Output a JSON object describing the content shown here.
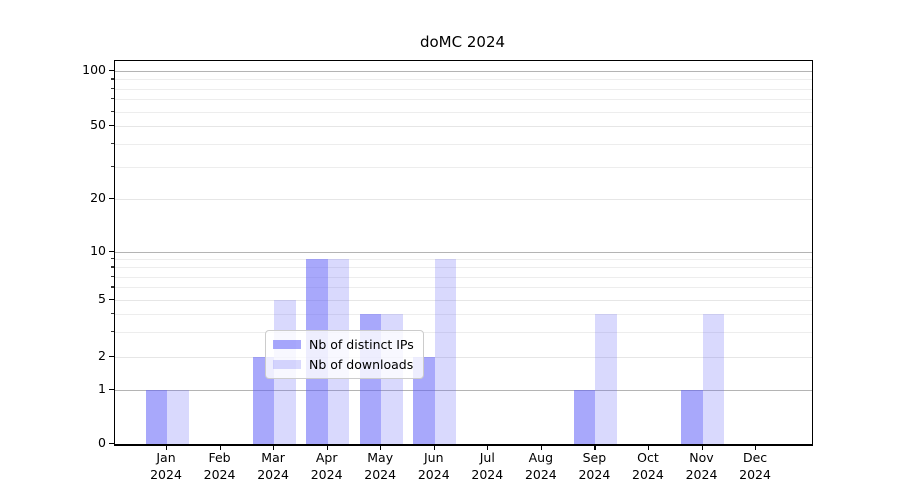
{
  "chart_data": {
    "type": "bar",
    "title": "doMC 2024",
    "categories": [
      "Jan\n2024",
      "Feb\n2024",
      "Mar\n2024",
      "Apr\n2024",
      "May\n2024",
      "Jun\n2024",
      "Jul\n2024",
      "Aug\n2024",
      "Sep\n2024",
      "Oct\n2024",
      "Nov\n2024",
      "Dec\n2024"
    ],
    "series": [
      {
        "name": "Nb of distinct IPs",
        "color": "rgba(95,95,248,0.54)",
        "values": [
          1,
          0,
          2,
          9,
          4,
          2,
          0,
          0,
          1,
          0,
          1,
          0
        ]
      },
      {
        "name": "Nb of downloads",
        "color": "rgba(95,95,248,0.24)",
        "values": [
          1,
          0,
          5,
          9,
          4,
          9,
          0,
          0,
          4,
          0,
          4,
          0
        ]
      }
    ],
    "y_axis": {
      "scale": "log-like",
      "ticks": [
        0,
        1,
        2,
        5,
        10,
        20,
        50,
        100
      ],
      "minor_gridlines": [
        3,
        4,
        6,
        7,
        8,
        9,
        30,
        40,
        60,
        70,
        80,
        90
      ],
      "ylim": [
        0,
        110
      ]
    },
    "legend": {
      "position": "lower center",
      "items": [
        "Nb of distinct IPs",
        "Nb of downloads"
      ]
    },
    "grid": true
  }
}
